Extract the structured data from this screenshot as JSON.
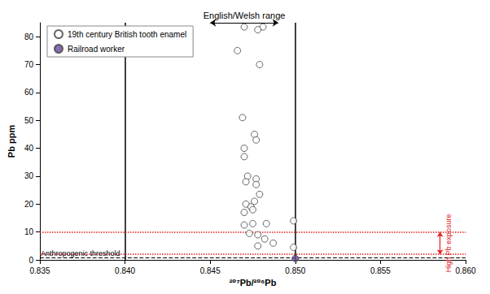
{
  "chart_data": {
    "type": "scatter",
    "x_label": "²⁰⁷Pb/²⁰⁶Pb",
    "y_label": "Pb ppm",
    "xlim": [
      0.835,
      0.86
    ],
    "xticks": [
      0.835,
      {
        "value": 0.84,
        "label": "0.840"
      },
      0.845,
      {
        "value": 0.85,
        "label": "0.850"
      },
      0.855,
      {
        "value": 0.86,
        "label": "0.860"
      }
    ],
    "ylim": [
      0,
      85
    ],
    "yticks": [
      0,
      10,
      20,
      30,
      40,
      50,
      60,
      70,
      80
    ],
    "grid": false,
    "legend": "upper left",
    "series": [
      {
        "name": "19th century British tooth enamel",
        "color": "#ffffff",
        "marker": "circle",
        "x": [
          0.847,
          0.8481,
          0.8478,
          0.8466,
          0.8479,
          0.8469,
          0.8476,
          0.8477,
          0.847,
          0.847,
          0.8472,
          0.8471,
          0.8477,
          0.8477,
          0.8479,
          0.8476,
          0.8471,
          0.8474,
          0.847,
          0.8475,
          0.8483,
          0.847,
          0.8475,
          0.8473,
          0.8478,
          0.8482,
          0.8478,
          0.8487,
          0.8499,
          0.8499
        ],
        "values": [
          83.5,
          83.5,
          82.5,
          75,
          70,
          51,
          45,
          43,
          40,
          37,
          30,
          28,
          29,
          27,
          23.5,
          21,
          20,
          19,
          17,
          18,
          13,
          12.5,
          13,
          9.5,
          9,
          7.5,
          5,
          6,
          14,
          4.5
        ]
      },
      {
        "name": "Railroad worker",
        "color": "#6a4a9c",
        "marker": "circle",
        "x": [
          0.85
        ],
        "values": [
          0.5
        ]
      }
    ],
    "annotations": [
      {
        "text": "English/Welsh range",
        "x": [
          0.845,
          0.849
        ]
      },
      {
        "text": "Anthropogenic threshold",
        "y": 0.8
      },
      {
        "text": "High Pb exposure",
        "y": [
          2,
          10
        ]
      }
    ]
  }
}
